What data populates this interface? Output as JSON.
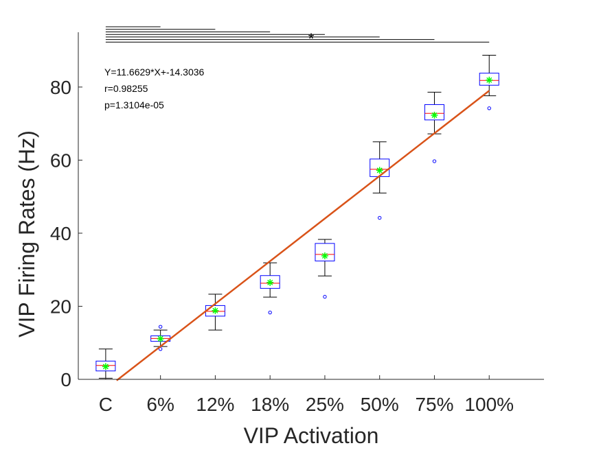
{
  "chart_data": {
    "type": "box",
    "xlabel": "VIP Activation",
    "ylabel": "VIP Firing Rates (Hz)",
    "categories": [
      "C",
      "6%",
      "12%",
      "18%",
      "25%",
      "50%",
      "75%",
      "100%"
    ],
    "ylim": [
      0,
      95
    ],
    "yticks": [
      0,
      20,
      40,
      60,
      80
    ],
    "boxes": [
      {
        "whisker_low": 0.3,
        "q1": 2.3,
        "median": 3.8,
        "q3": 5.0,
        "whisker_high": 8.3,
        "mean": 3.5,
        "outliers": []
      },
      {
        "whisker_low": 9.0,
        "q1": 10.4,
        "median": 11.2,
        "q3": 11.9,
        "whisker_high": 13.5,
        "mean": 11.1,
        "outliers": [
          14.4,
          8.3
        ]
      },
      {
        "whisker_low": 13.5,
        "q1": 17.3,
        "median": 18.6,
        "q3": 20.2,
        "whisker_high": 23.3,
        "mean": 18.8,
        "outliers": []
      },
      {
        "whisker_low": 22.5,
        "q1": 24.9,
        "median": 26.3,
        "q3": 28.4,
        "whisker_high": 31.9,
        "mean": 26.5,
        "outliers": [
          18.3
        ]
      },
      {
        "whisker_low": 28.3,
        "q1": 32.4,
        "median": 34.2,
        "q3": 37.2,
        "whisker_high": 38.3,
        "mean": 33.8,
        "outliers": [
          22.6
        ]
      },
      {
        "whisker_low": 51.0,
        "q1": 55.5,
        "median": 57.5,
        "q3": 60.3,
        "whisker_high": 65.0,
        "mean": 57.2,
        "outliers": [
          44.2
        ]
      },
      {
        "whisker_low": 67.2,
        "q1": 71.0,
        "median": 72.8,
        "q3": 75.2,
        "whisker_high": 78.6,
        "mean": 72.3,
        "outliers": [
          59.7
        ]
      },
      {
        "whisker_low": 77.6,
        "q1": 80.5,
        "median": 81.8,
        "q3": 83.8,
        "whisker_high": 88.7,
        "mean": 81.9,
        "outliers": [
          74.2
        ]
      }
    ],
    "fit_line": {
      "slope": 11.6629,
      "intercept": -14.3036,
      "x_start": 1.2,
      "x_end": 8.0
    },
    "annotations": [
      "Y=11.6629*X+-14.3036",
      "r=0.98255",
      "p=1.3104e-05"
    ],
    "significance": {
      "marker": "*",
      "bracket_count": 7
    },
    "colors": {
      "box": "#0000ff",
      "median": "#ff0000",
      "whisker": "#000000",
      "mean_marker": "#00ff00",
      "outlier": "#0000ff",
      "fit_line": "#d95319",
      "axis": "#262626"
    }
  }
}
